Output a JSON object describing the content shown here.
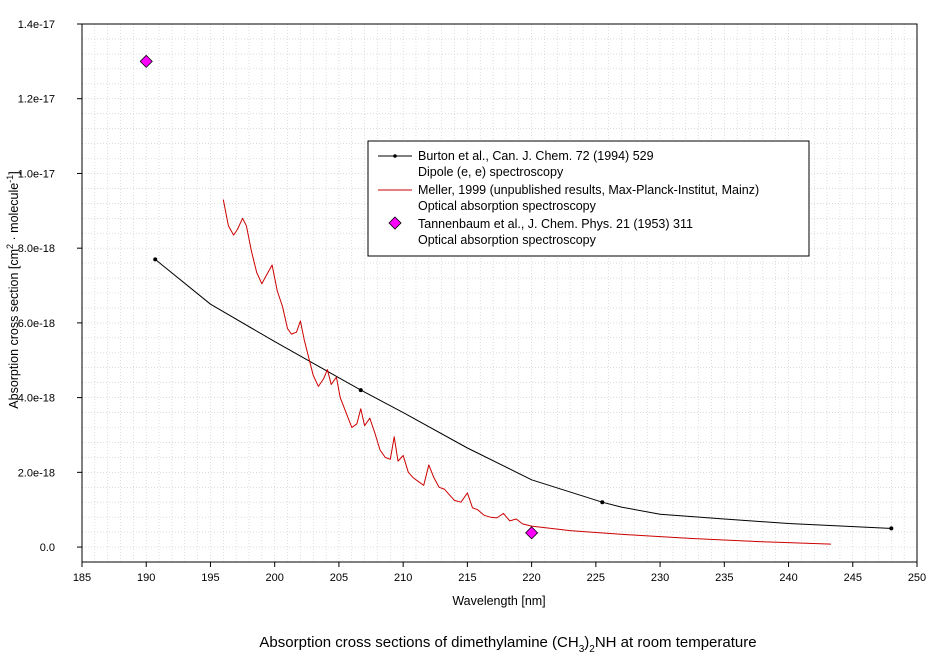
{
  "chart_data": {
    "type": "line",
    "title": "",
    "caption": {
      "prefix": "Absorption cross sections of dimethylamine (CH",
      "sub1": "3",
      "mid": ")",
      "sub2": "2",
      "suffix": "NH at room temperature"
    },
    "xlabel": "Wavelength [nm]",
    "ylabel": {
      "prefix": "Absorption cross section [cm",
      "sup1": "2",
      "mid": " · molecule",
      "sup2": "-1",
      "suffix": "]"
    },
    "xlim": [
      185,
      250
    ],
    "ylim": [
      -4e-19,
      1.4e-17
    ],
    "x_ticks": [
      185,
      190,
      195,
      200,
      205,
      210,
      215,
      220,
      225,
      230,
      235,
      240,
      245,
      250
    ],
    "x_tick_labels": [
      "185",
      "190",
      "195",
      "200",
      "205",
      "210",
      "215",
      "220",
      "225",
      "230",
      "235",
      "240",
      "245",
      "250"
    ],
    "y_ticks": [
      0,
      2e-18,
      4e-18,
      6e-18,
      8e-18,
      1e-17,
      1.2e-17,
      1.4e-17
    ],
    "y_tick_labels": [
      "0.0",
      "2.0e-18",
      "4.0e-18",
      "6.0e-18",
      "8.0e-18",
      "1.0e-17",
      "1.2e-17",
      "1.4e-17"
    ],
    "grid": true,
    "legend_position": "upper-center-right",
    "series": [
      {
        "name": "Burton et al., Can. J. Chem. 72 (1994) 529",
        "subtitle": "Dipole (e, e) spectroscopy",
        "color": "#000000",
        "kind": "line-markers",
        "x": [
          190.7,
          195,
          200,
          206.7,
          210,
          215,
          220,
          225.5,
          227,
          230,
          235,
          240,
          248
        ],
        "y": [
          7.7e-18,
          6.5e-18,
          5.5e-18,
          4.2e-18,
          3.6e-18,
          2.65e-18,
          1.8e-18,
          1.2e-18,
          1.07e-18,
          8.8e-19,
          7.5e-19,
          6.3e-19,
          5e-19
        ],
        "markers": [
          0,
          3,
          7,
          12
        ]
      },
      {
        "name": "Meller, 1999 (unpublished results, Max-Planck-Institut, Mainz)",
        "subtitle": "Optical absorption spectroscopy",
        "color": "#cc0000",
        "kind": "line",
        "x": [
          196.0,
          196.4,
          196.8,
          197.1,
          197.5,
          197.8,
          198.2,
          198.6,
          199.0,
          199.4,
          199.8,
          200.2,
          200.6,
          201.0,
          201.3,
          201.7,
          202.0,
          202.3,
          202.7,
          203.0,
          203.4,
          203.8,
          204.1,
          204.4,
          204.8,
          205.1,
          205.5,
          206.0,
          206.4,
          206.7,
          207.0,
          207.4,
          207.8,
          208.2,
          208.6,
          209.0,
          209.3,
          209.6,
          210.0,
          210.4,
          210.8,
          211.2,
          211.6,
          212.0,
          212.4,
          212.8,
          213.2,
          213.6,
          214.0,
          214.5,
          215.0,
          215.4,
          215.8,
          216.3,
          216.8,
          217.3,
          217.8,
          218.3,
          218.8,
          219.3,
          220.0,
          221.0,
          222.0,
          223.0,
          225.0,
          227.5,
          230.0,
          232.5,
          235.0,
          237.5,
          240.0,
          243.3
        ],
        "y": [
          9.3e-18,
          8.6e-18,
          8.35e-18,
          8.5e-18,
          8.8e-18,
          8.6e-18,
          7.9e-18,
          7.35e-18,
          7.05e-18,
          7.3e-18,
          7.55e-18,
          6.85e-18,
          6.45e-18,
          5.85e-18,
          5.7e-18,
          5.75e-18,
          6.05e-18,
          5.55e-18,
          5e-18,
          4.6e-18,
          4.3e-18,
          4.5e-18,
          4.75e-18,
          4.35e-18,
          4.55e-18,
          4e-18,
          3.65e-18,
          3.2e-18,
          3.3e-18,
          3.7e-18,
          3.25e-18,
          3.45e-18,
          3.05e-18,
          2.6e-18,
          2.4e-18,
          2.35e-18,
          2.95e-18,
          2.3e-18,
          2.45e-18,
          2e-18,
          1.85e-18,
          1.75e-18,
          1.65e-18,
          2.2e-18,
          1.85e-18,
          1.6e-18,
          1.55e-18,
          1.4e-18,
          1.25e-18,
          1.2e-18,
          1.45e-18,
          1.05e-18,
          1e-18,
          8.5e-19,
          8e-19,
          7.8e-19,
          9e-19,
          7e-19,
          7.5e-19,
          6.2e-19,
          5.6e-19,
          5.2e-19,
          4.8e-19,
          4.4e-19,
          3.9e-19,
          3.3e-19,
          2.8e-19,
          2.3e-19,
          1.9e-19,
          1.5e-19,
          1.2e-19,
          8e-20
        ]
      },
      {
        "name": "Tannenbaum et al., J. Chem. Phys. 21 (1953) 311",
        "subtitle": "Optical absorption spectroscopy",
        "color": "#ff00ff",
        "kind": "diamond-points",
        "x": [
          190,
          220
        ],
        "y": [
          1.3e-17,
          3.8e-19
        ]
      }
    ]
  }
}
